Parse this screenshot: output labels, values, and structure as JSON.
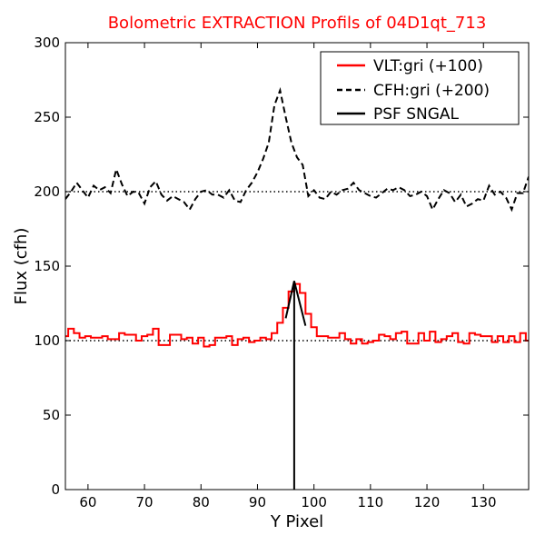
{
  "chart_data": {
    "type": "line",
    "title": "Bolometric EXTRACTION Profils of 04D1qt_713",
    "title_color": "#ff0000",
    "xlabel": "Y Pixel",
    "ylabel": "Flux (cfh)",
    "xlim": [
      56,
      138
    ],
    "ylim": [
      0,
      300
    ],
    "xticks": [
      60,
      70,
      80,
      90,
      100,
      110,
      120,
      130
    ],
    "yticks": [
      0,
      50,
      100,
      150,
      200,
      250,
      300
    ],
    "grid": false,
    "legend_position": "top-right",
    "reference_lines": [
      {
        "y": 100,
        "style": "dotted",
        "color": "#000000"
      },
      {
        "y": 200,
        "style": "dotted",
        "color": "#000000"
      }
    ],
    "series": [
      {
        "name": "VLT:gri (+100)",
        "color": "#ff0000",
        "style": "steps",
        "x": [
          56,
          57,
          58,
          59,
          60,
          61,
          62,
          63,
          64,
          65,
          66,
          67,
          68,
          69,
          70,
          71,
          72,
          73,
          74,
          75,
          76,
          77,
          78,
          79,
          80,
          81,
          82,
          83,
          84,
          85,
          86,
          87,
          88,
          89,
          90,
          91,
          92,
          93,
          94,
          95,
          96,
          97,
          98,
          99,
          100,
          101,
          102,
          103,
          104,
          105,
          106,
          107,
          108,
          109,
          110,
          111,
          112,
          113,
          114,
          115,
          116,
          117,
          118,
          119,
          120,
          121,
          122,
          123,
          124,
          125,
          126,
          127,
          128,
          129,
          130,
          131,
          132,
          133,
          134,
          135,
          136,
          137,
          138
        ],
        "y": [
          103,
          108,
          105,
          102,
          103,
          102,
          102,
          103,
          101,
          101,
          105,
          104,
          104,
          100,
          103,
          104,
          108,
          97,
          97,
          104,
          104,
          101,
          102,
          98,
          102,
          96,
          97,
          102,
          102,
          103,
          97,
          101,
          102,
          99,
          100,
          102,
          101,
          105,
          112,
          122,
          133,
          138,
          132,
          118,
          109,
          103,
          103,
          102,
          102,
          105,
          101,
          98,
          101,
          98,
          99,
          100,
          104,
          103,
          101,
          105,
          106,
          98,
          98,
          105,
          100,
          106,
          99,
          101,
          103,
          105,
          99,
          98,
          105,
          104,
          103,
          103,
          99,
          103,
          99,
          103,
          99,
          105,
          100
        ]
      },
      {
        "name": "CFH:gri (+200)",
        "color": "#000000",
        "style": "dashed",
        "x": [
          56,
          57,
          58,
          59,
          60,
          61,
          62,
          63,
          64,
          65,
          66,
          67,
          68,
          69,
          70,
          71,
          72,
          73,
          74,
          75,
          76,
          77,
          78,
          79,
          80,
          81,
          82,
          83,
          84,
          85,
          86,
          87,
          88,
          89,
          90,
          91,
          92,
          93,
          94,
          95,
          96,
          97,
          98,
          99,
          100,
          101,
          102,
          103,
          104,
          105,
          106,
          107,
          108,
          109,
          110,
          111,
          112,
          113,
          114,
          115,
          116,
          117,
          118,
          119,
          120,
          121,
          122,
          123,
          124,
          125,
          126,
          127,
          128,
          129,
          130,
          131,
          132,
          133,
          134,
          135,
          136,
          137,
          138
        ],
        "y": [
          195,
          200,
          206,
          201,
          196,
          204,
          201,
          203,
          199,
          215,
          205,
          197,
          200,
          199,
          192,
          203,
          207,
          198,
          194,
          197,
          195,
          193,
          188,
          195,
          200,
          201,
          198,
          198,
          196,
          201,
          194,
          193,
          201,
          206,
          213,
          222,
          233,
          258,
          268,
          250,
          233,
          223,
          218,
          197,
          201,
          196,
          195,
          200,
          198,
          201,
          202,
          206,
          201,
          199,
          197,
          196,
          199,
          202,
          201,
          203,
          201,
          197,
          198,
          200,
          197,
          188,
          195,
          201,
          199,
          193,
          198,
          190,
          192,
          195,
          194,
          204,
          198,
          200,
          196,
          188,
          199,
          199,
          210
        ]
      },
      {
        "name": "PSF SNGAL",
        "color": "#000000",
        "style": "solid",
        "x": [
          95,
          96.5,
          96.5,
          96.5,
          98.5
        ],
        "y": [
          115,
          140,
          0,
          140,
          110
        ]
      }
    ]
  }
}
